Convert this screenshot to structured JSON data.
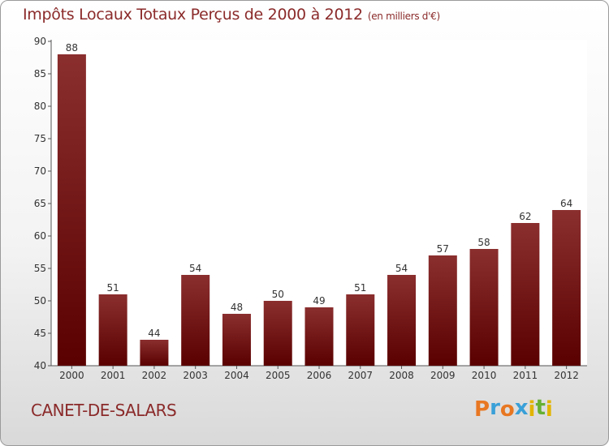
{
  "header": {
    "title": "Impôts Locaux Totaux Perçus de 2000 à 2012",
    "unit": "(en milliers d'€)"
  },
  "commune": "CANET-DE-SALARS",
  "logo": {
    "letters": [
      "P",
      "r",
      "o",
      "x",
      "i",
      "t",
      "i"
    ],
    "colors": [
      "#e87722",
      "#3aa0d8",
      "#e87722",
      "#3aa0d8",
      "#e2b400",
      "#66b032",
      "#e2b400"
    ]
  },
  "colors": {
    "bar_top": "#8b2e2e",
    "bar_bottom": "#5a0000",
    "text": "#8b2a2a"
  },
  "chart_data": {
    "type": "bar",
    "title": "Impôts Locaux Totaux Perçus de 2000 à 2012",
    "categories": [
      "2000",
      "2001",
      "2002",
      "2003",
      "2004",
      "2005",
      "2006",
      "2007",
      "2008",
      "2009",
      "2010",
      "2011",
      "2012"
    ],
    "values": [
      88,
      51,
      44,
      54,
      48,
      50,
      49,
      51,
      54,
      57,
      58,
      62,
      64
    ],
    "ylim": [
      40,
      90
    ],
    "yticks": [
      40,
      45,
      50,
      55,
      60,
      65,
      70,
      75,
      80,
      85,
      90
    ],
    "grid": false,
    "data_labels": true
  }
}
